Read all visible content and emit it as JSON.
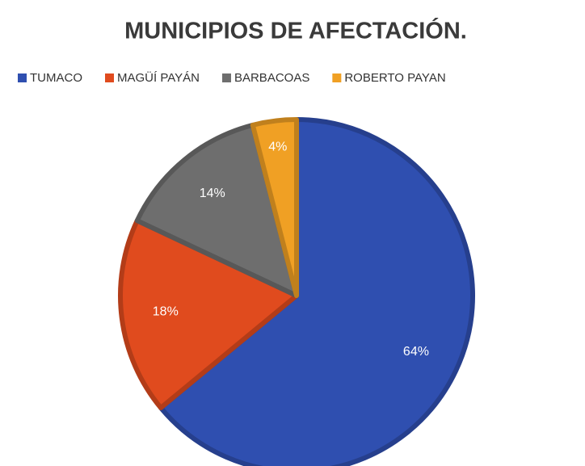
{
  "chart_data": {
    "type": "pie",
    "title": "MUNICIPIOS DE AFECTACIÓN.",
    "categories": [
      "TUMACO",
      "MAGÜÍ PAYÁN",
      "BARBACOAS",
      "ROBERTO PAYAN"
    ],
    "values": [
      64,
      18,
      14,
      4
    ],
    "value_labels": [
      "64%",
      "18%",
      "14%",
      "4%"
    ],
    "colors": [
      "#2f4fb0",
      "#e04b1e",
      "#6e6e6e",
      "#f0a024"
    ],
    "legend": "top"
  }
}
